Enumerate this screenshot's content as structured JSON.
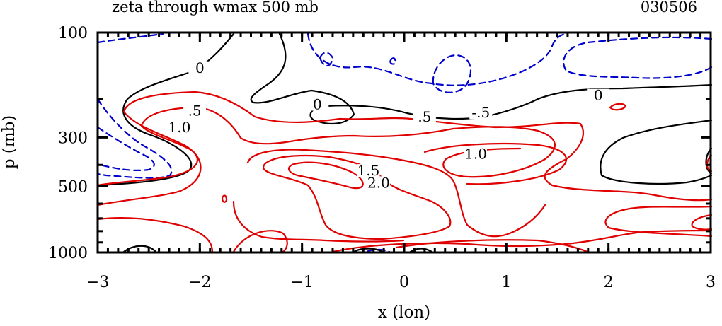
{
  "chart_data": {
    "type": "contour",
    "title": "zeta through wmax 500 mb",
    "date_label": "030506",
    "xlabel": "x (lon)",
    "ylabel": "p (mb)",
    "xlim": [
      -3,
      3
    ],
    "ylim": [
      1000,
      100
    ],
    "x_ticks": [
      -3,
      -2,
      -1,
      0,
      1,
      2,
      3
    ],
    "x_tick_labels": [
      "−3",
      "−2",
      "−1",
      "0",
      "1",
      "2",
      "3"
    ],
    "y_ticks": [
      100,
      300,
      500,
      1000
    ],
    "y_tick_labels": [
      "100",
      "300",
      "500",
      "1000"
    ],
    "colors": {
      "positive": "#e00000",
      "zero": "#000000",
      "negative": "#0000cc"
    },
    "contour_labels": [
      {
        "text": "0",
        "x": -2.0,
        "p": 150,
        "color": "zero"
      },
      {
        "text": "0",
        "x": -0.85,
        "p": 220,
        "color": "zero"
      },
      {
        "text": "0",
        "x": 1.9,
        "p": 200,
        "color": "zero"
      },
      {
        "text": ".5",
        "x": -2.05,
        "p": 235,
        "color": "positive"
      },
      {
        "text": "1.0",
        "x": -2.2,
        "p": 280,
        "color": "positive"
      },
      {
        "text": ".5",
        "x": 0.2,
        "p": 250,
        "color": "positive"
      },
      {
        "text": "-.5",
        "x": 0.75,
        "p": 240,
        "color": "negative"
      },
      {
        "text": "1.0",
        "x": 0.7,
        "p": 370,
        "color": "positive"
      },
      {
        "text": "1.5",
        "x": -0.35,
        "p": 440,
        "color": "positive"
      },
      {
        "text": "2.0",
        "x": -0.25,
        "p": 500,
        "color": "positive"
      }
    ]
  }
}
